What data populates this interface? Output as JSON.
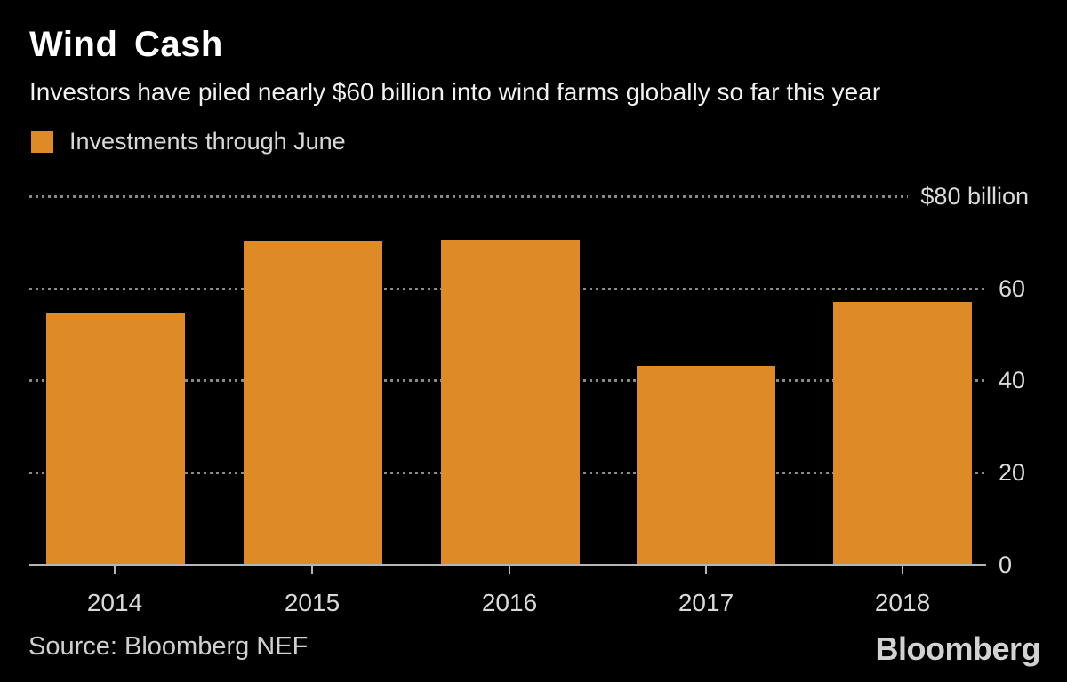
{
  "header": {
    "title": "Wind Cash",
    "subtitle": "Investors have piled nearly $60 billion into wind farms globally so far this year"
  },
  "legend": {
    "label": "Investments through June",
    "swatch_color": "#DE8A27"
  },
  "chart_data": {
    "type": "bar",
    "title": "Wind Cash",
    "subtitle": "Investors have piled nearly $60 billion into wind farms globally so far this year",
    "series_name": "Investments through June",
    "categories": [
      "2014",
      "2015",
      "2016",
      "2017",
      "2018"
    ],
    "values": [
      54.5,
      70.3,
      70.6,
      43.2,
      57.1
    ],
    "unit": "$ billion",
    "ylim": [
      0,
      80
    ],
    "ytick_values": [
      80,
      60,
      40,
      20,
      0
    ],
    "ytick_labels": [
      "$80 billion",
      "60",
      "40",
      "20",
      "0"
    ],
    "grid": "dotted horizontal, labels on right",
    "legend_position": "top-left",
    "bar_color": "#DE8A27"
  },
  "footer": {
    "source": "Source: Bloomberg NEF",
    "logo": "Bloomberg"
  },
  "colors": {
    "background": "#000000",
    "bar": "#DE8A27",
    "gridline": "#8A8A8A",
    "axis_line": "#B5B5B5",
    "title_text": "#FFFFFF",
    "tick_text": "#D9D9D9"
  }
}
